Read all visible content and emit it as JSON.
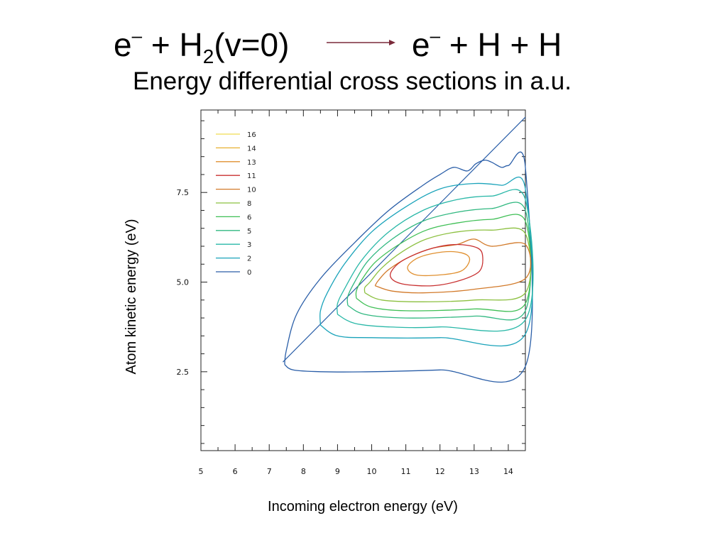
{
  "slide": {
    "reaction": {
      "reactant_electron": "e",
      "reactant_charge": "–",
      "plus1": " + ",
      "reactant_molecule": "H",
      "reactant_subscript": "2",
      "reactant_state": "(v=0)",
      "product_electron": "e",
      "product_charge": "–",
      "plus2": " + ",
      "product_atom1": "H",
      "plus3": " + ",
      "product_atom2": "H"
    },
    "subtitle": "Energy differential cross sections in a.u.",
    "arrow_color": "#7a2a3a"
  },
  "chart_data": {
    "type": "contour",
    "xlabel": "Incoming electron energy (eV)",
    "ylabel": "Atom kinetic energy (eV)",
    "xlim": [
      5,
      14.5
    ],
    "ylim": [
      0.3,
      9.8
    ],
    "x_ticks": [
      5,
      6,
      7,
      8,
      9,
      10,
      11,
      12,
      13,
      14
    ],
    "x_tick_labels": [
      "5",
      "6",
      "7",
      "8",
      "9",
      "10",
      "11",
      "12",
      "13",
      "14"
    ],
    "y_ticks": [
      2.5,
      5.0,
      7.5
    ],
    "y_tick_labels": [
      "2.5",
      "5.0",
      "7.5"
    ],
    "legend_position": "top-left",
    "threshold_line": [
      [
        7.4,
        2.77
      ],
      [
        14.5,
        9.6
      ]
    ],
    "series": [
      {
        "name": "0",
        "color": "#2a5ea8",
        "points": [
          [
            7.45,
            2.7
          ],
          [
            7.7,
            2.55
          ],
          [
            8.5,
            2.5
          ],
          [
            10,
            2.5
          ],
          [
            12,
            2.55
          ],
          [
            14.5,
            2.65
          ],
          [
            14.5,
            8.2
          ],
          [
            14,
            8.25
          ],
          [
            13.8,
            8.2
          ],
          [
            13.5,
            8.35
          ],
          [
            13.3,
            8.4
          ],
          [
            13.05,
            8.3
          ],
          [
            12.8,
            8.1
          ],
          [
            12.4,
            8.2
          ],
          [
            12,
            8
          ],
          [
            11.5,
            7.7
          ],
          [
            10.5,
            7
          ],
          [
            9.5,
            6.1
          ],
          [
            8.5,
            5.1
          ],
          [
            7.8,
            4.1
          ],
          [
            7.5,
            3.1
          ],
          [
            7.45,
            2.7
          ]
        ],
        "closed": false
      },
      {
        "name": "2",
        "color": "#1aa3ba",
        "points": [
          [
            8.5,
            3.8
          ],
          [
            9,
            3.5
          ],
          [
            10,
            3.45
          ],
          [
            12,
            3.45
          ],
          [
            14.5,
            3.55
          ],
          [
            14.5,
            7.6
          ],
          [
            13.8,
            7.7
          ],
          [
            13,
            7.75
          ],
          [
            12,
            7.6
          ],
          [
            11,
            7.1
          ],
          [
            10,
            6.4
          ],
          [
            9.2,
            5.5
          ],
          [
            8.7,
            4.7
          ],
          [
            8.5,
            4.2
          ],
          [
            8.5,
            3.8
          ]
        ],
        "closed": false
      },
      {
        "name": "3",
        "color": "#2ab8a8",
        "points": [
          [
            9,
            4.1
          ],
          [
            9.5,
            3.85
          ],
          [
            10.5,
            3.75
          ],
          [
            12,
            3.75
          ],
          [
            14.5,
            3.95
          ],
          [
            14.5,
            7.3
          ],
          [
            13.5,
            7.4
          ],
          [
            12.5,
            7.3
          ],
          [
            11.5,
            7
          ],
          [
            10.5,
            6.4
          ],
          [
            9.7,
            5.6
          ],
          [
            9.2,
            4.8
          ],
          [
            9,
            4.4
          ],
          [
            9,
            4.1
          ]
        ],
        "closed": false
      },
      {
        "name": "5",
        "color": "#30b880",
        "points": [
          [
            9.3,
            4.35
          ],
          [
            9.8,
            4.1
          ],
          [
            11,
            4
          ],
          [
            13,
            4.05
          ],
          [
            14.5,
            4.2
          ],
          [
            14.5,
            7.0
          ],
          [
            13.5,
            7.05
          ],
          [
            12.5,
            6.95
          ],
          [
            11.5,
            6.7
          ],
          [
            10.6,
            6.2
          ],
          [
            9.9,
            5.6
          ],
          [
            9.5,
            5
          ],
          [
            9.3,
            4.6
          ],
          [
            9.3,
            4.35
          ]
        ],
        "closed": false
      },
      {
        "name": "6",
        "color": "#3fbf55",
        "points": [
          [
            9.55,
            4.55
          ],
          [
            10,
            4.3
          ],
          [
            11,
            4.2
          ],
          [
            13,
            4.25
          ],
          [
            14.5,
            4.4
          ],
          [
            14.5,
            6.7
          ],
          [
            13.5,
            6.75
          ],
          [
            12.5,
            6.65
          ],
          [
            11.6,
            6.45
          ],
          [
            10.8,
            6.05
          ],
          [
            10.1,
            5.55
          ],
          [
            9.7,
            5.05
          ],
          [
            9.55,
            4.75
          ],
          [
            9.55,
            4.55
          ]
        ],
        "closed": false
      },
      {
        "name": "8",
        "color": "#8cc040",
        "points": [
          [
            9.8,
            4.7
          ],
          [
            10.3,
            4.5
          ],
          [
            11.5,
            4.45
          ],
          [
            13,
            4.5
          ],
          [
            14.5,
            4.7
          ],
          [
            14.5,
            6.35
          ],
          [
            13.5,
            6.45
          ],
          [
            12.5,
            6.4
          ],
          [
            11.6,
            6.2
          ],
          [
            10.9,
            5.85
          ],
          [
            10.3,
            5.4
          ],
          [
            9.95,
            5
          ],
          [
            9.8,
            4.85
          ],
          [
            9.8,
            4.7
          ]
        ],
        "closed": false
      },
      {
        "name": "10",
        "color": "#d27a2a",
        "points": [
          [
            10.1,
            4.9
          ],
          [
            10.6,
            4.75
          ],
          [
            11.5,
            4.7
          ],
          [
            13,
            4.8
          ],
          [
            14.5,
            5.1
          ],
          [
            14.5,
            6.05
          ],
          [
            13.5,
            6.0
          ],
          [
            13,
            6.2
          ],
          [
            12.5,
            6.05
          ],
          [
            11.8,
            5.95
          ],
          [
            11.1,
            5.7
          ],
          [
            10.5,
            5.35
          ],
          [
            10.2,
            5.05
          ],
          [
            10.1,
            4.9
          ]
        ],
        "closed": false
      },
      {
        "name": "11",
        "color": "#c83030",
        "points": [
          [
            10.55,
            5.15
          ],
          [
            10.9,
            4.95
          ],
          [
            11.8,
            4.9
          ],
          [
            12.6,
            5.05
          ],
          [
            13.15,
            5.3
          ],
          [
            13.25,
            5.7
          ],
          [
            13.1,
            5.95
          ],
          [
            12.5,
            6.05
          ],
          [
            11.8,
            5.95
          ],
          [
            11.1,
            5.7
          ],
          [
            10.7,
            5.45
          ],
          [
            10.55,
            5.15
          ]
        ],
        "closed": true
      },
      {
        "name": "13",
        "color": "#e09030",
        "points": [
          [
            11.05,
            5.4
          ],
          [
            11.3,
            5.2
          ],
          [
            12,
            5.2
          ],
          [
            12.6,
            5.3
          ],
          [
            12.85,
            5.55
          ],
          [
            12.8,
            5.75
          ],
          [
            12.4,
            5.85
          ],
          [
            11.8,
            5.8
          ],
          [
            11.3,
            5.65
          ],
          [
            11.05,
            5.4
          ]
        ],
        "closed": true
      },
      {
        "name": "14",
        "color": "#e8b030",
        "points": [],
        "closed": true
      },
      {
        "name": "16",
        "color": "#f0dc50",
        "points": [],
        "closed": true
      }
    ]
  }
}
